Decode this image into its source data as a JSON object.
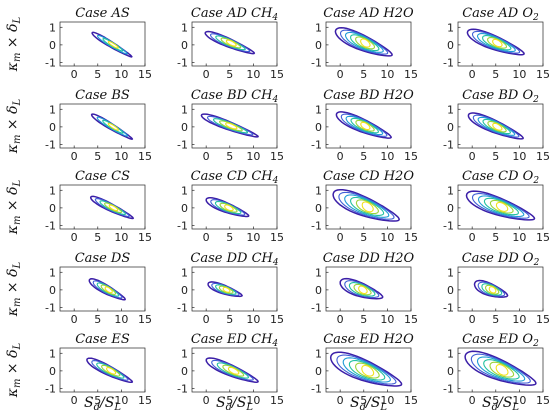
{
  "figure": {
    "xlabel": "S_d/S_L",
    "ylabel": "κ_m × δ_L",
    "palette": [
      "#3b1fa8",
      "#3f5fd6",
      "#1f9bd6",
      "#22c1a0",
      "#9bd43a",
      "#f2e21c"
    ]
  },
  "chart_data": {
    "type": "contour",
    "rows": 5,
    "cols": 4,
    "xlim": [
      -3,
      15
    ],
    "ylim": [
      -1.2,
      1.3
    ],
    "xticks": [
      0,
      5,
      10,
      15
    ],
    "yticks": [
      -1,
      0,
      1
    ],
    "xlabel": "S_d/S_L",
    "ylabel": "κ_m × δ_L",
    "panels": [
      {
        "title": "Case AS",
        "center": [
          8,
          0
        ],
        "half_length": 4.2,
        "half_width": 0.17,
        "slope": -0.16,
        "levels": 4
      },
      {
        "title": "Case AD CH4",
        "center": [
          5,
          0.1
        ],
        "half_length": 5.2,
        "half_width": 0.25,
        "slope": -0.11,
        "levels": 5
      },
      {
        "title": "Case AD H2O",
        "center": [
          5,
          0.1
        ],
        "half_length": 6.0,
        "half_width": 0.45,
        "slope": -0.11,
        "levels": 6
      },
      {
        "title": "Case AD O2",
        "center": [
          5,
          0.1
        ],
        "half_length": 6.0,
        "half_width": 0.4,
        "slope": -0.1,
        "levels": 6
      },
      {
        "title": "Case BS",
        "center": [
          8,
          0
        ],
        "half_length": 4.3,
        "half_width": 0.18,
        "slope": -0.16,
        "levels": 4
      },
      {
        "title": "Case BD CH4",
        "center": [
          5,
          0.05
        ],
        "half_length": 6.0,
        "half_width": 0.24,
        "slope": -0.1,
        "levels": 5
      },
      {
        "title": "Case BD H2O",
        "center": [
          5,
          0.05
        ],
        "half_length": 5.8,
        "half_width": 0.38,
        "slope": -0.11,
        "levels": 6
      },
      {
        "title": "Case BD O2",
        "center": [
          5,
          0
        ],
        "half_length": 5.8,
        "half_width": 0.36,
        "slope": -0.11,
        "levels": 6
      },
      {
        "title": "Case CS",
        "center": [
          8,
          0
        ],
        "half_length": 4.5,
        "half_width": 0.22,
        "slope": -0.13,
        "levels": 5
      },
      {
        "title": "Case CD CH4",
        "center": [
          4.5,
          0
        ],
        "half_length": 4.5,
        "half_width": 0.28,
        "slope": -0.1,
        "levels": 5
      },
      {
        "title": "Case CD H2O",
        "center": [
          5.5,
          0.05
        ],
        "half_length": 7.0,
        "half_width": 0.55,
        "slope": -0.1,
        "levels": 6
      },
      {
        "title": "Case CD O2",
        "center": [
          6,
          0.05
        ],
        "half_length": 7.2,
        "half_width": 0.5,
        "slope": -0.09,
        "levels": 6
      },
      {
        "title": "Case DS",
        "center": [
          7,
          0
        ],
        "half_length": 3.8,
        "half_width": 0.26,
        "slope": -0.14,
        "levels": 5
      },
      {
        "title": "Case DD CH4",
        "center": [
          4,
          0
        ],
        "half_length": 3.6,
        "half_width": 0.25,
        "slope": -0.09,
        "levels": 5
      },
      {
        "title": "Case DD H2O",
        "center": [
          4.5,
          0
        ],
        "half_length": 4.5,
        "half_width": 0.4,
        "slope": -0.09,
        "levels": 5
      },
      {
        "title": "Case DD O2",
        "center": [
          4,
          0
        ],
        "half_length": 3.5,
        "half_width": 0.35,
        "slope": -0.09,
        "levels": 5
      },
      {
        "title": "Case ES",
        "center": [
          7.5,
          0
        ],
        "half_length": 4.8,
        "half_width": 0.28,
        "slope": -0.13,
        "levels": 5
      },
      {
        "title": "Case ED CH4",
        "center": [
          5.5,
          0
        ],
        "half_length": 5.5,
        "half_width": 0.32,
        "slope": -0.11,
        "levels": 5
      },
      {
        "title": "Case ED H2O",
        "center": [
          5.5,
          0
        ],
        "half_length": 7.5,
        "half_width": 0.6,
        "slope": -0.1,
        "levels": 6
      },
      {
        "title": "Case ED O2",
        "center": [
          6,
          0.05
        ],
        "half_length": 7.5,
        "half_width": 0.6,
        "slope": -0.1,
        "levels": 6
      }
    ]
  }
}
